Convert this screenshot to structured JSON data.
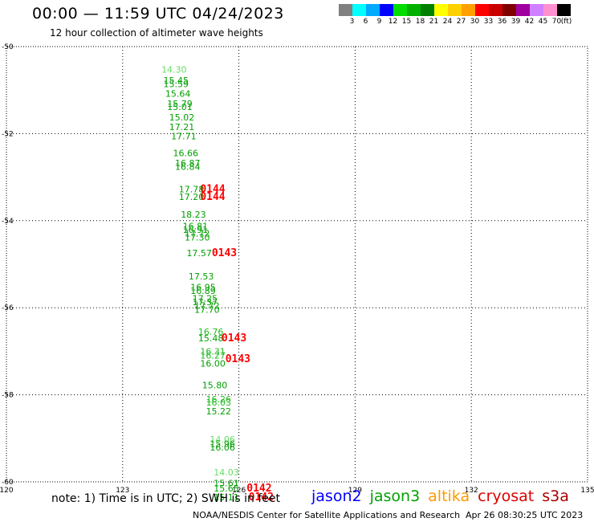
{
  "header": {
    "title": "00:00 — 11:59 UTC 04/24/2023",
    "subtitle": "12 hour collection of altimeter wave heights"
  },
  "colorbar": {
    "unit_label": "(ft)",
    "bins": [
      {
        "color": "#808080",
        "label": "3"
      },
      {
        "color": "#00ffff",
        "label": "6"
      },
      {
        "color": "#00aaff",
        "label": "9"
      },
      {
        "color": "#0000ff",
        "label": "12"
      },
      {
        "color": "#00dd00",
        "label": "15"
      },
      {
        "color": "#00b000",
        "label": "18"
      },
      {
        "color": "#008000",
        "label": "21"
      },
      {
        "color": "#ffff00",
        "label": "24"
      },
      {
        "color": "#ffd000",
        "label": "27"
      },
      {
        "color": "#ffa000",
        "label": "30"
      },
      {
        "color": "#ff0000",
        "label": "33"
      },
      {
        "color": "#c80000",
        "label": "36"
      },
      {
        "color": "#800000",
        "label": "39"
      },
      {
        "color": "#a000a0",
        "label": "42"
      },
      {
        "color": "#d080ff",
        "label": "45"
      },
      {
        "color": "#ff90d0",
        "label": "70"
      },
      {
        "color": "#000000",
        "label": ""
      }
    ]
  },
  "map": {
    "lon_ticks": [
      {
        "value": 120,
        "label": "120"
      },
      {
        "value": 123,
        "label": "123"
      },
      {
        "value": 126,
        "label": "126"
      },
      {
        "value": 129,
        "label": "129"
      },
      {
        "value": 132,
        "label": "132"
      },
      {
        "value": 135,
        "label": "135"
      }
    ],
    "lat_ticks": [
      {
        "value": -50,
        "label": "-50"
      },
      {
        "value": -52,
        "label": "-52"
      },
      {
        "value": -54,
        "label": "-54"
      },
      {
        "value": -56,
        "label": "-56"
      },
      {
        "value": -58,
        "label": "-58"
      },
      {
        "value": -60,
        "label": "-60"
      }
    ],
    "colors": {
      "light": "#66dd66",
      "medium": "#22bb22",
      "dark": "#00a000",
      "time": "#ff0000"
    },
    "labels": [
      {
        "lon": 124.0,
        "lat": -50.6,
        "text": "14.30",
        "tone": "light"
      },
      {
        "lon": 124.05,
        "lat": -50.85,
        "text": "15.45",
        "tone": "dark"
      },
      {
        "lon": 124.05,
        "lat": -50.93,
        "text": "15.59",
        "tone": "dark"
      },
      {
        "lon": 124.1,
        "lat": -51.15,
        "text": "15.64",
        "tone": "dark"
      },
      {
        "lon": 124.15,
        "lat": -51.38,
        "text": "15.79",
        "tone": "dark"
      },
      {
        "lon": 124.15,
        "lat": -51.46,
        "text": "15.01",
        "tone": "dark"
      },
      {
        "lon": 124.2,
        "lat": -51.7,
        "text": "15.02",
        "tone": "dark"
      },
      {
        "lon": 124.2,
        "lat": -51.92,
        "text": "17.21",
        "tone": "dark"
      },
      {
        "lon": 124.25,
        "lat": -52.13,
        "text": "17.71",
        "tone": "dark"
      },
      {
        "lon": 124.3,
        "lat": -52.52,
        "text": "16.66",
        "tone": "dark"
      },
      {
        "lon": 124.35,
        "lat": -52.75,
        "text": "16.87",
        "tone": "dark"
      },
      {
        "lon": 124.35,
        "lat": -52.83,
        "text": "16.84",
        "tone": "dark"
      },
      {
        "lon": 124.45,
        "lat": -53.35,
        "text": "17.78",
        "tone": "dark"
      },
      {
        "lon": 124.45,
        "lat": -53.52,
        "text": "17.20",
        "tone": "dark"
      },
      {
        "lon": 124.5,
        "lat": -53.93,
        "text": "18.23",
        "tone": "dark"
      },
      {
        "lon": 124.55,
        "lat": -54.2,
        "text": "16.81",
        "tone": "dark"
      },
      {
        "lon": 124.55,
        "lat": -54.28,
        "text": "16.91",
        "tone": "dark"
      },
      {
        "lon": 124.6,
        "lat": -54.36,
        "text": "17.72",
        "tone": "dark"
      },
      {
        "lon": 124.6,
        "lat": -54.46,
        "text": "17.30",
        "tone": "dark"
      },
      {
        "lon": 124.65,
        "lat": -54.82,
        "text": "17.57",
        "tone": "dark"
      },
      {
        "lon": 124.7,
        "lat": -55.35,
        "text": "17.53",
        "tone": "dark"
      },
      {
        "lon": 124.75,
        "lat": -55.6,
        "text": "16.95",
        "tone": "dark"
      },
      {
        "lon": 124.75,
        "lat": -55.68,
        "text": "16.89",
        "tone": "dark"
      },
      {
        "lon": 124.8,
        "lat": -55.86,
        "text": "17.25",
        "tone": "dark"
      },
      {
        "lon": 124.8,
        "lat": -55.94,
        "text": "17.37",
        "tone": "dark"
      },
      {
        "lon": 124.85,
        "lat": -56.02,
        "text": "17.72",
        "tone": "dark"
      },
      {
        "lon": 124.85,
        "lat": -56.12,
        "text": "17.70",
        "tone": "dark"
      },
      {
        "lon": 124.95,
        "lat": -56.62,
        "text": "16.76",
        "tone": "medium"
      },
      {
        "lon": 124.95,
        "lat": -56.77,
        "text": "15.48",
        "tone": "dark"
      },
      {
        "lon": 125.0,
        "lat": -57.08,
        "text": "16.31",
        "tone": "medium"
      },
      {
        "lon": 125.0,
        "lat": -57.17,
        "text": "16.27",
        "tone": "medium"
      },
      {
        "lon": 125.0,
        "lat": -57.35,
        "text": "16.00",
        "tone": "dark"
      },
      {
        "lon": 125.05,
        "lat": -57.85,
        "text": "15.80",
        "tone": "dark"
      },
      {
        "lon": 125.15,
        "lat": -58.17,
        "text": "16.26",
        "tone": "medium"
      },
      {
        "lon": 125.15,
        "lat": -58.25,
        "text": "16.03",
        "tone": "medium"
      },
      {
        "lon": 125.15,
        "lat": -58.45,
        "text": "15.22",
        "tone": "dark"
      },
      {
        "lon": 125.25,
        "lat": -59.1,
        "text": "14.06",
        "tone": "light"
      },
      {
        "lon": 125.25,
        "lat": -59.2,
        "text": "15.96",
        "tone": "dark"
      },
      {
        "lon": 125.25,
        "lat": -59.28,
        "text": "16.06",
        "tone": "dark"
      },
      {
        "lon": 125.35,
        "lat": -59.85,
        "text": "14.03",
        "tone": "light"
      },
      {
        "lon": 125.35,
        "lat": -60.1,
        "text": "15.61",
        "tone": "dark"
      },
      {
        "lon": 125.35,
        "lat": -60.22,
        "text": "15.65",
        "tone": "dark"
      },
      {
        "lon": 125.35,
        "lat": -60.42,
        "text": "15.11",
        "tone": "dark"
      }
    ],
    "time_labels": [
      {
        "lon": 125.0,
        "lat": -53.35,
        "text": "0144"
      },
      {
        "lon": 125.0,
        "lat": -53.52,
        "text": "0144"
      },
      {
        "lon": 125.3,
        "lat": -54.82,
        "text": "0143"
      },
      {
        "lon": 125.55,
        "lat": -56.77,
        "text": "0143"
      },
      {
        "lon": 125.65,
        "lat": -57.25,
        "text": "0143"
      },
      {
        "lon": 126.2,
        "lat": -60.22,
        "text": "0142"
      },
      {
        "lon": 126.25,
        "lat": -60.42,
        "text": "0142"
      }
    ]
  },
  "footer": {
    "note": "note: 1) Time is in UTC; 2) SWH is in feet",
    "missions": [
      {
        "name": "jason2",
        "color": "#0000ff"
      },
      {
        "name": "jason3",
        "color": "#00a000"
      },
      {
        "name": "altika",
        "color": "#ff9900"
      },
      {
        "name": "cryosat",
        "color": "#dd0000"
      },
      {
        "name": "s3a",
        "color": "#aa0000"
      }
    ],
    "credit": "NOAA/NESDIS Center for Satellite Applications and Research",
    "timestamp": "Apr 26 08:30:25 UTC 2023"
  }
}
